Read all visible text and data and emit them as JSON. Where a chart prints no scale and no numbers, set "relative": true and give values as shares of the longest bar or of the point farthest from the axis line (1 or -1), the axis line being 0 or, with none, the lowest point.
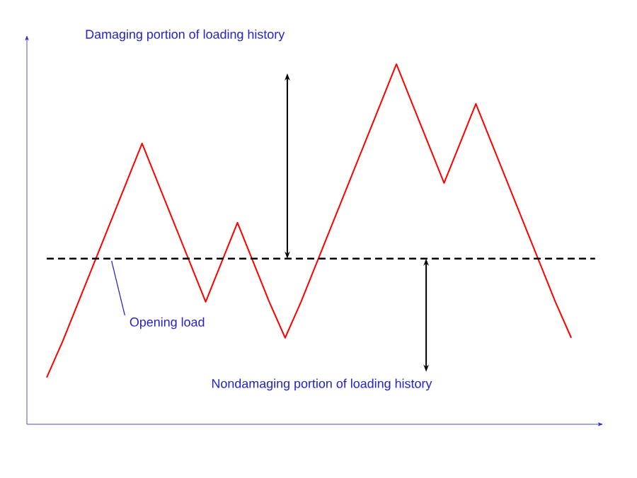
{
  "chart_data": {
    "type": "line",
    "relative": true,
    "categories": [
      null,
      null,
      null,
      null,
      null,
      null,
      null,
      null,
      null,
      null,
      null,
      null,
      null,
      null,
      null,
      null,
      null,
      null,
      null,
      null,
      null,
      null,
      null,
      null,
      null,
      null,
      null,
      null,
      null,
      null,
      null,
      null,
      null,
      null
    ],
    "series": [
      {
        "color": "#ff0000",
        "values": [
          0.13,
          0.23,
          0.34,
          0.45,
          0.56,
          0.67,
          0.78,
          0.67,
          0.56,
          0.45,
          0.34,
          0.45,
          0.56,
          0.45,
          0.34,
          0.24,
          0.34,
          0.45,
          0.56,
          0.67,
          0.78,
          0.89,
          1.0,
          0.89,
          0.78,
          0.67,
          0.78,
          0.89,
          0.78,
          0.67,
          0.56,
          0.45,
          0.34,
          0.24
        ]
      }
    ],
    "ref_lines": [
      {
        "axis": "y",
        "value": 0.46,
        "color": "#000000",
        "line_style": "dashed"
      }
    ],
    "annotations": [
      "Damaging portion of loading history",
      "Opening load",
      "Nondamaging portion of loading history"
    ]
  }
}
